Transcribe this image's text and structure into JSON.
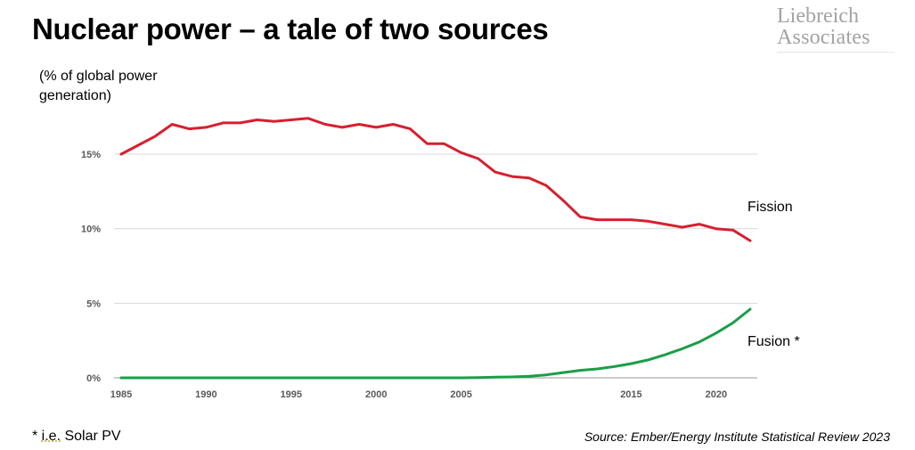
{
  "title": "Nuclear power – a tale of two sources",
  "logo": {
    "line1": "Liebreich",
    "line2": "Associates"
  },
  "units": "(% of global power generation)",
  "footnote": {
    "star": "* ",
    "ie": "i.e.",
    "rest": " Solar PV"
  },
  "source": "Source: Ember/Energy Institute Statistical Review 2023",
  "chart_data": {
    "type": "line",
    "title": "Nuclear power – a tale of two sources",
    "ylabel": "(% of global power generation)",
    "xlabel": "",
    "xlim": [
      1985,
      2022
    ],
    "ylim": [
      0,
      17.5
    ],
    "x_ticks": [
      1985,
      1990,
      1995,
      2000,
      2005,
      2015,
      2020
    ],
    "x_tick_labels": [
      "1985",
      "1990",
      "1995",
      "2000",
      "2005",
      "2015",
      "2020"
    ],
    "y_ticks": [
      0,
      5,
      10,
      15
    ],
    "y_tick_labels": [
      "0%",
      "5%",
      "10%",
      "15%"
    ],
    "grid": true,
    "x": [
      1985,
      1986,
      1987,
      1988,
      1989,
      1990,
      1991,
      1992,
      1993,
      1994,
      1995,
      1996,
      1997,
      1998,
      1999,
      2000,
      2001,
      2002,
      2003,
      2004,
      2005,
      2006,
      2007,
      2008,
      2009,
      2010,
      2011,
      2012,
      2013,
      2014,
      2015,
      2016,
      2017,
      2018,
      2019,
      2020,
      2021,
      2022
    ],
    "series": [
      {
        "name": "Fission",
        "color": "#d6202f",
        "values": [
          15.0,
          15.6,
          16.2,
          17.0,
          16.7,
          16.8,
          17.1,
          17.1,
          17.3,
          17.2,
          17.3,
          17.4,
          17.0,
          16.8,
          17.0,
          16.8,
          17.0,
          16.7,
          15.7,
          15.7,
          15.1,
          14.7,
          13.8,
          13.5,
          13.4,
          12.9,
          11.9,
          10.8,
          10.6,
          10.6,
          10.6,
          10.5,
          10.3,
          10.1,
          10.3,
          10.0,
          9.9,
          9.2
        ]
      },
      {
        "name": "Fusion *",
        "color": "#1a9e47",
        "values": [
          0,
          0,
          0,
          0,
          0,
          0,
          0,
          0,
          0,
          0,
          0,
          0,
          0,
          0,
          0,
          0,
          0,
          0,
          0,
          0,
          0,
          0.02,
          0.04,
          0.06,
          0.1,
          0.2,
          0.35,
          0.5,
          0.6,
          0.75,
          0.95,
          1.2,
          1.55,
          1.95,
          2.4,
          3.0,
          3.7,
          4.6
        ]
      }
    ]
  }
}
